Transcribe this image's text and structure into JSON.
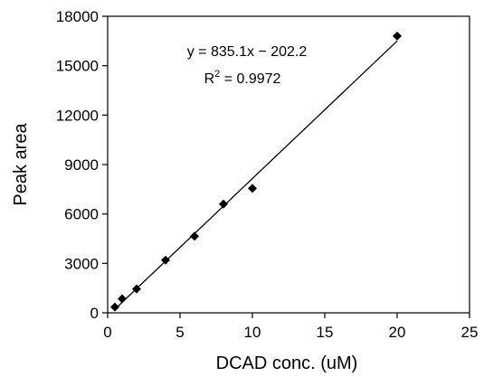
{
  "chart_data": {
    "type": "scatter",
    "xlabel": "DCAD conc. (uM)",
    "ylabel": "Peak area",
    "xlim": [
      0,
      25
    ],
    "ylim": [
      0,
      18000
    ],
    "x_ticks": [
      0,
      5,
      10,
      15,
      20,
      25
    ],
    "y_ticks": [
      0,
      3000,
      6000,
      9000,
      12000,
      15000,
      18000
    ],
    "x_tick_labels": [
      "0",
      "5",
      "10",
      "15",
      "20",
      "25"
    ],
    "y_tick_labels": [
      "0",
      "3000",
      "6000",
      "9000",
      "12000",
      "15000",
      "18000"
    ],
    "grid": false,
    "marker": "diamond",
    "colors": {
      "points": "#000000",
      "line": "#000000",
      "axes": "#000000"
    },
    "points": [
      {
        "x": 0.5,
        "y": 350
      },
      {
        "x": 1,
        "y": 850
      },
      {
        "x": 2,
        "y": 1450
      },
      {
        "x": 4,
        "y": 3200
      },
      {
        "x": 6,
        "y": 4650
      },
      {
        "x": 8,
        "y": 6600
      },
      {
        "x": 10,
        "y": 7550
      },
      {
        "x": 20,
        "y": 16800
      }
    ],
    "fit": {
      "slope": 835.1,
      "intercept": -202.2,
      "x_range": [
        0.5,
        20
      ],
      "equation_label": "y = 835.1x − 202.2",
      "r2_prefix": "R",
      "r2_superscript": "2",
      "r2_value": " = 0.9972"
    }
  }
}
